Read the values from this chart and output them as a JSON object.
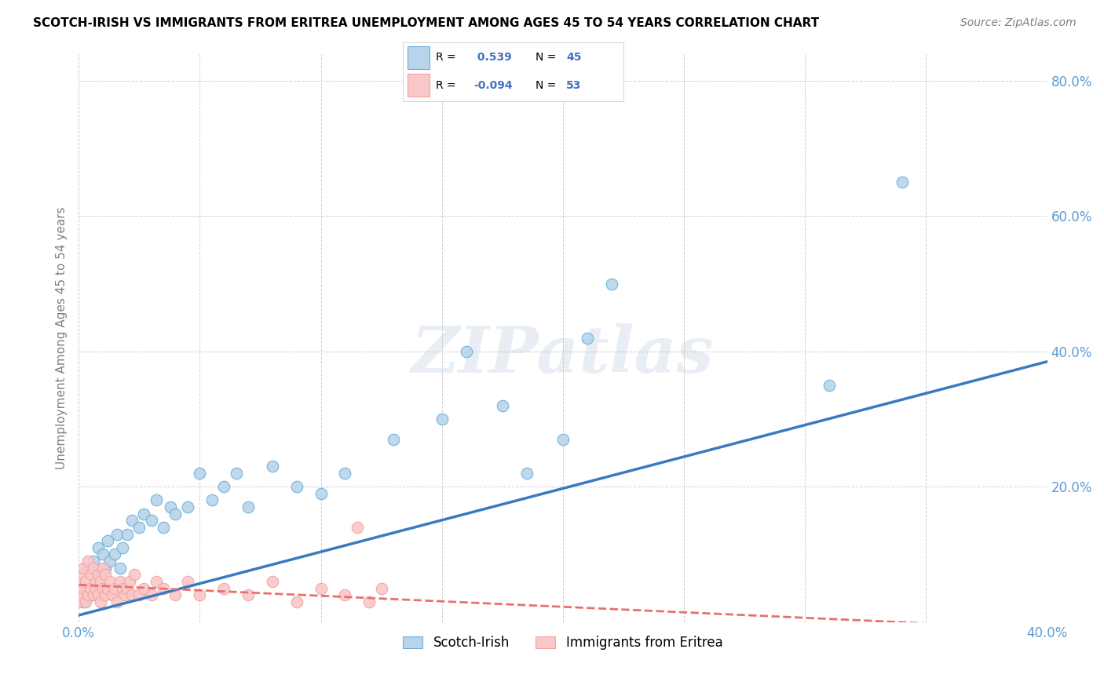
{
  "title": "SCOTCH-IRISH VS IMMIGRANTS FROM ERITREA UNEMPLOYMENT AMONG AGES 45 TO 54 YEARS CORRELATION CHART",
  "source": "Source: ZipAtlas.com",
  "ylabel": "Unemployment Among Ages 45 to 54 years",
  "watermark": "ZIPatlas",
  "xlim": [
    0.0,
    0.4
  ],
  "ylim": [
    0.0,
    0.84
  ],
  "xticks": [
    0.0,
    0.05,
    0.1,
    0.15,
    0.2,
    0.25,
    0.3,
    0.35,
    0.4
  ],
  "yticks": [
    0.0,
    0.2,
    0.4,
    0.6,
    0.8
  ],
  "ytick_labels": [
    "",
    "20.0%",
    "40.0%",
    "60.0%",
    "80.0%"
  ],
  "xtick_labels": [
    "0.0%",
    "",
    "",
    "",
    "",
    "",
    "",
    "",
    "40.0%"
  ],
  "R_blue": 0.539,
  "N_blue": 45,
  "R_pink": -0.094,
  "N_pink": 53,
  "blue_color": "#6baed6",
  "pink_color": "#f4a0a0",
  "blue_fill": "#b8d4ea",
  "pink_fill": "#f9c8c8",
  "trend_blue": "#3a7abf",
  "trend_pink": "#e87070",
  "legend_label_blue": "Scotch-Irish",
  "legend_label_pink": "Immigrants from Eritrea",
  "blue_scatter_x": [
    0.002,
    0.003,
    0.004,
    0.005,
    0.006,
    0.007,
    0.008,
    0.009,
    0.01,
    0.011,
    0.012,
    0.013,
    0.015,
    0.016,
    0.017,
    0.018,
    0.02,
    0.022,
    0.025,
    0.027,
    0.03,
    0.032,
    0.035,
    0.038,
    0.04,
    0.045,
    0.05,
    0.055,
    0.06,
    0.065,
    0.07,
    0.08,
    0.09,
    0.1,
    0.11,
    0.13,
    0.15,
    0.16,
    0.175,
    0.185,
    0.2,
    0.21,
    0.22,
    0.31,
    0.34
  ],
  "blue_scatter_y": [
    0.03,
    0.05,
    0.08,
    0.04,
    0.09,
    0.06,
    0.11,
    0.07,
    0.1,
    0.08,
    0.12,
    0.09,
    0.1,
    0.13,
    0.08,
    0.11,
    0.13,
    0.15,
    0.14,
    0.16,
    0.15,
    0.18,
    0.14,
    0.17,
    0.16,
    0.17,
    0.22,
    0.18,
    0.2,
    0.22,
    0.17,
    0.23,
    0.2,
    0.19,
    0.22,
    0.27,
    0.3,
    0.4,
    0.32,
    0.22,
    0.27,
    0.42,
    0.5,
    0.35,
    0.65
  ],
  "pink_scatter_x": [
    0.0,
    0.0,
    0.001,
    0.001,
    0.002,
    0.002,
    0.003,
    0.003,
    0.004,
    0.004,
    0.005,
    0.005,
    0.006,
    0.006,
    0.007,
    0.007,
    0.008,
    0.008,
    0.009,
    0.009,
    0.01,
    0.01,
    0.011,
    0.011,
    0.012,
    0.013,
    0.014,
    0.015,
    0.016,
    0.017,
    0.018,
    0.019,
    0.02,
    0.021,
    0.022,
    0.023,
    0.025,
    0.027,
    0.03,
    0.032,
    0.035,
    0.04,
    0.045,
    0.05,
    0.06,
    0.07,
    0.08,
    0.09,
    0.1,
    0.11,
    0.115,
    0.12,
    0.125
  ],
  "pink_scatter_y": [
    0.03,
    0.06,
    0.04,
    0.07,
    0.05,
    0.08,
    0.03,
    0.06,
    0.04,
    0.09,
    0.05,
    0.07,
    0.04,
    0.08,
    0.05,
    0.06,
    0.04,
    0.07,
    0.03,
    0.06,
    0.05,
    0.08,
    0.04,
    0.07,
    0.05,
    0.06,
    0.04,
    0.05,
    0.03,
    0.06,
    0.05,
    0.04,
    0.05,
    0.06,
    0.04,
    0.07,
    0.04,
    0.05,
    0.04,
    0.06,
    0.05,
    0.04,
    0.06,
    0.04,
    0.05,
    0.04,
    0.06,
    0.03,
    0.05,
    0.04,
    0.14,
    0.03,
    0.05
  ],
  "trend_blue_x0": 0.0,
  "trend_blue_y0": 0.01,
  "trend_blue_x1": 0.4,
  "trend_blue_y1": 0.385,
  "trend_pink_x0": 0.0,
  "trend_pink_y0": 0.055,
  "trend_pink_x1": 0.4,
  "trend_pink_y1": -0.01
}
